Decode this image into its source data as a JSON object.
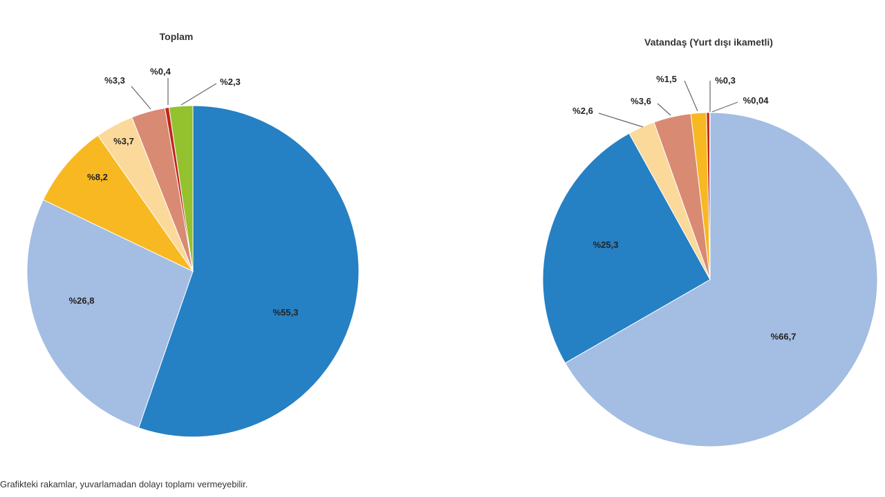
{
  "chart_data": [
    {
      "type": "pie",
      "title": "Toplam",
      "start": "top, clockwise",
      "slices": [
        {
          "label": "%55,3",
          "value": 55.3,
          "color": "#2680c4"
        },
        {
          "label": "%26,8",
          "value": 26.8,
          "color": "#a3bde3"
        },
        {
          "label": "%8,2",
          "value": 8.2,
          "color": "#f8b822"
        },
        {
          "label": "%3,7",
          "value": 3.7,
          "color": "#fbd99a"
        },
        {
          "label": "%3,3",
          "value": 3.3,
          "color": "#d98a73"
        },
        {
          "label": "%0,4",
          "value": 0.4,
          "color": "#c0271e"
        },
        {
          "label": "%2,3",
          "value": 2.3,
          "color": "#94c12e"
        }
      ]
    },
    {
      "type": "pie",
      "title": "Vatandaş (Yurt dışı ikametli)",
      "start": "top, clockwise",
      "slices": [
        {
          "label": "%66,7",
          "value": 66.7,
          "color": "#a3bde3"
        },
        {
          "label": "%25,3",
          "value": 25.3,
          "color": "#2680c4"
        },
        {
          "label": "%2,6",
          "value": 2.6,
          "color": "#fbd99a"
        },
        {
          "label": "%3,6",
          "value": 3.6,
          "color": "#d98a73"
        },
        {
          "label": "%1,5",
          "value": 1.5,
          "color": "#f8b822"
        },
        {
          "label": "%0,3",
          "value": 0.3,
          "color": "#c0271e"
        },
        {
          "label": "%0,04",
          "value": 0.04,
          "color": "#94c12e"
        }
      ]
    }
  ],
  "footnote": "Grafikteki rakamlar, yuvarlamadan dolayı toplamı vermeyebilir."
}
